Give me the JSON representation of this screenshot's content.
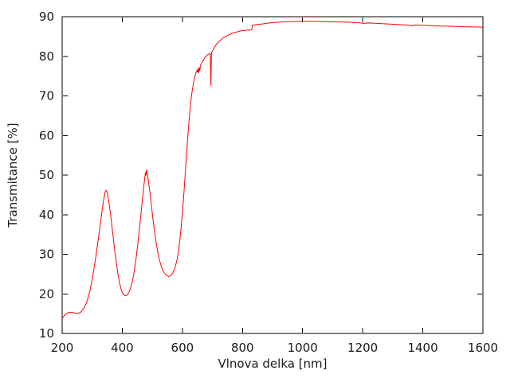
{
  "figure": {
    "background": "#ffffff",
    "frame_color": "#000000",
    "text_color": "#1a1a1a"
  },
  "chart_data": {
    "type": "line",
    "title": "",
    "xlabel": "Vlnova delka [nm]",
    "ylabel": "Transmitance [%]",
    "xlim": [
      200,
      1600
    ],
    "ylim": [
      10,
      90
    ],
    "xticks": [
      200,
      400,
      600,
      800,
      1000,
      1200,
      1400,
      1600
    ],
    "yticks": [
      10,
      20,
      30,
      40,
      50,
      60,
      70,
      80,
      90
    ],
    "grid": false,
    "legend_position": "none",
    "series": [
      {
        "name": "transmittance-spectrum",
        "color": "#ff0000",
        "points": [
          [
            200,
            13.8
          ],
          [
            204,
            14.2
          ],
          [
            208,
            14.6
          ],
          [
            213,
            15.0
          ],
          [
            218,
            15.2
          ],
          [
            224,
            15.3
          ],
          [
            232,
            15.3
          ],
          [
            240,
            15.2
          ],
          [
            248,
            15.1
          ],
          [
            255,
            15.1
          ],
          [
            262,
            15.4
          ],
          [
            268,
            15.9
          ],
          [
            274,
            16.6
          ],
          [
            280,
            17.6
          ],
          [
            286,
            18.9
          ],
          [
            292,
            20.7
          ],
          [
            298,
            22.9
          ],
          [
            304,
            25.5
          ],
          [
            310,
            28.3
          ],
          [
            316,
            31.4
          ],
          [
            322,
            34.7
          ],
          [
            328,
            38.2
          ],
          [
            333,
            41.2
          ],
          [
            337,
            43.3
          ],
          [
            341,
            45.0
          ],
          [
            344,
            46.0
          ],
          [
            347,
            46.1
          ],
          [
            350,
            45.5
          ],
          [
            354,
            43.9
          ],
          [
            358,
            41.8
          ],
          [
            363,
            38.8
          ],
          [
            368,
            35.4
          ],
          [
            374,
            31.6
          ],
          [
            380,
            28.0
          ],
          [
            386,
            24.9
          ],
          [
            391,
            22.8
          ],
          [
            396,
            21.2
          ],
          [
            401,
            20.2
          ],
          [
            406,
            19.7
          ],
          [
            411,
            19.5
          ],
          [
            416,
            19.7
          ],
          [
            421,
            20.2
          ],
          [
            427,
            21.2
          ],
          [
            433,
            22.9
          ],
          [
            439,
            25.3
          ],
          [
            445,
            28.4
          ],
          [
            451,
            32.1
          ],
          [
            457,
            36.3
          ],
          [
            463,
            40.8
          ],
          [
            468,
            44.6
          ],
          [
            472,
            47.4
          ],
          [
            475,
            49.3
          ],
          [
            477,
            50.7
          ],
          [
            479,
            49.9
          ],
          [
            481,
            51.4
          ],
          [
            483,
            50.4
          ],
          [
            486,
            48.9
          ],
          [
            489,
            47.3
          ],
          [
            493,
            45.0
          ],
          [
            497,
            42.3
          ],
          [
            502,
            39.0
          ],
          [
            507,
            35.9
          ],
          [
            513,
            32.8
          ],
          [
            519,
            30.2
          ],
          [
            525,
            28.2
          ],
          [
            531,
            26.7
          ],
          [
            537,
            25.6
          ],
          [
            543,
            25.0
          ],
          [
            549,
            24.6
          ],
          [
            555,
            24.4
          ],
          [
            561,
            24.6
          ],
          [
            567,
            25.1
          ],
          [
            572,
            25.9
          ],
          [
            577,
            27.0
          ],
          [
            582,
            28.6
          ],
          [
            587,
            30.8
          ],
          [
            592,
            33.8
          ],
          [
            597,
            37.6
          ],
          [
            602,
            42.2
          ],
          [
            607,
            47.5
          ],
          [
            612,
            53.2
          ],
          [
            617,
            58.8
          ],
          [
            622,
            63.7
          ],
          [
            627,
            67.8
          ],
          [
            632,
            70.9
          ],
          [
            637,
            73.2
          ],
          [
            641,
            74.7
          ],
          [
            645,
            75.8
          ],
          [
            648,
            76.4
          ],
          [
            650,
            75.9
          ],
          [
            652,
            76.9
          ],
          [
            654,
            75.8
          ],
          [
            656,
            77.2
          ],
          [
            658,
            76.3
          ],
          [
            660,
            77.7
          ],
          [
            663,
            78.1
          ],
          [
            666,
            78.6
          ],
          [
            670,
            79.1
          ],
          [
            674,
            79.5
          ],
          [
            679,
            80.0
          ],
          [
            684,
            80.4
          ],
          [
            689,
            80.6
          ],
          [
            693,
            80.7
          ],
          [
            694,
            76.5
          ],
          [
            695,
            72.6
          ],
          [
            696,
            78.0
          ],
          [
            697,
            80.9
          ],
          [
            700,
            81.3
          ],
          [
            704,
            81.9
          ],
          [
            709,
            82.6
          ],
          [
            714,
            83.1
          ],
          [
            720,
            83.6
          ],
          [
            726,
            84.0
          ],
          [
            733,
            84.5
          ],
          [
            740,
            84.9
          ],
          [
            748,
            85.2
          ],
          [
            756,
            85.5
          ],
          [
            765,
            85.8
          ],
          [
            774,
            86.0
          ],
          [
            784,
            86.2
          ],
          [
            794,
            86.4
          ],
          [
            804,
            86.5
          ],
          [
            814,
            86.6
          ],
          [
            824,
            86.6
          ],
          [
            831,
            86.7
          ],
          [
            833,
            87.8
          ],
          [
            838,
            87.9
          ],
          [
            846,
            88.0
          ],
          [
            856,
            88.1
          ],
          [
            868,
            88.2
          ],
          [
            882,
            88.35
          ],
          [
            898,
            88.5
          ],
          [
            915,
            88.6
          ],
          [
            933,
            88.7
          ],
          [
            952,
            88.75
          ],
          [
            972,
            88.8
          ],
          [
            992,
            88.85
          ],
          [
            1012,
            88.85
          ],
          [
            1035,
            88.85
          ],
          [
            1060,
            88.8
          ],
          [
            1085,
            88.75
          ],
          [
            1110,
            88.7
          ],
          [
            1135,
            88.65
          ],
          [
            1160,
            88.6
          ],
          [
            1185,
            88.5
          ],
          [
            1205,
            88.3
          ],
          [
            1215,
            88.45
          ],
          [
            1240,
            88.35
          ],
          [
            1265,
            88.25
          ],
          [
            1290,
            88.15
          ],
          [
            1315,
            88.05
          ],
          [
            1340,
            87.95
          ],
          [
            1365,
            87.75
          ],
          [
            1375,
            87.9
          ],
          [
            1400,
            87.85
          ],
          [
            1430,
            87.75
          ],
          [
            1460,
            87.65
          ],
          [
            1490,
            87.6
          ],
          [
            1520,
            87.5
          ],
          [
            1550,
            87.45
          ],
          [
            1575,
            87.4
          ],
          [
            1600,
            87.35
          ]
        ]
      }
    ]
  }
}
